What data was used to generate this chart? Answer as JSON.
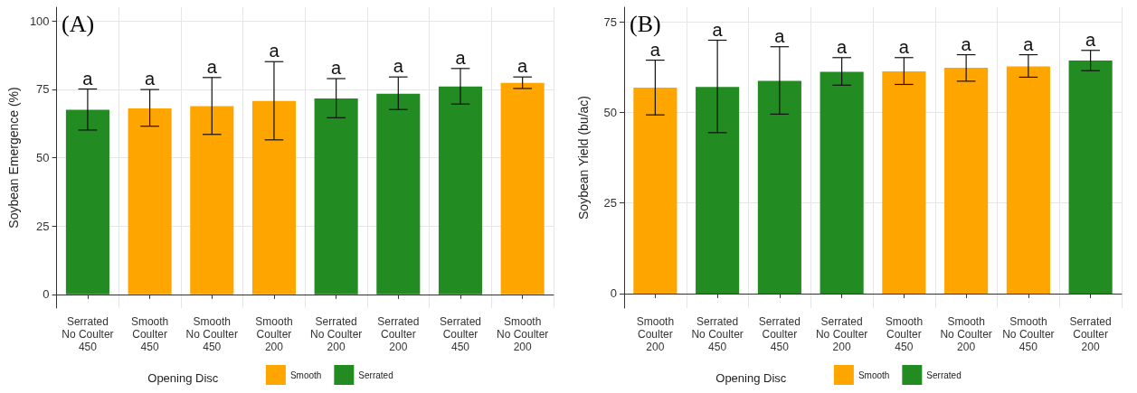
{
  "chart_data": [
    {
      "type": "bar",
      "title": "(A)",
      "ylabel": "Soybean Emergence (%)",
      "legend_title": "Opening Disc",
      "legend": "bottom",
      "grid": true,
      "categories": [
        "Serrated\nNo Coulter\n450",
        "Smooth\nCoulter\n450",
        "Smooth\nNo Coulter\n450",
        "Smooth\nCoulter\n200",
        "Serrated\nNo Coulter\n200",
        "Serrated\nCoulter\n200",
        "Serrated\nCoulter\n450",
        "Smooth\nNo Coulter\n200"
      ],
      "series": [
        {
          "name": "Smooth",
          "color": "#ffa500",
          "values": [
            null,
            68.0,
            68.8,
            70.7,
            null,
            null,
            null,
            77.3
          ],
          "errors": [
            null,
            [
              61.5,
              74.9
            ],
            [
              58.5,
              79.3
            ],
            [
              56.5,
              85.1
            ],
            null,
            null,
            null,
            [
              75.3,
              79.5
            ]
          ]
        },
        {
          "name": "Serrated",
          "color": "#228b22",
          "values": [
            67.5,
            null,
            null,
            null,
            71.6,
            73.4,
            76.0,
            null
          ],
          "errors": [
            [
              60.1,
              75.1
            ],
            null,
            null,
            null,
            [
              64.6,
              78.9
            ],
            [
              67.6,
              79.5
            ],
            [
              69.6,
              82.6
            ],
            null
          ]
        }
      ],
      "ylim": [
        -5,
        105
      ],
      "yticks": [
        0,
        25,
        50,
        75,
        100
      ],
      "annotations": [
        {
          "text": "a",
          "x": "Serrated\nNo Coulter\n450",
          "y": 75.1
        },
        {
          "text": "a",
          "x": "Smooth\nCoulter\n450",
          "y": 74.9
        },
        {
          "text": "a",
          "x": "Smooth\nNo Coulter\n450",
          "y": 79.3
        },
        {
          "text": "a",
          "x": "Smooth\nCoulter\n200",
          "y": 85.1
        },
        {
          "text": "a",
          "x": "Serrated\nNo Coulter\n200",
          "y": 78.9
        },
        {
          "text": "a",
          "x": "Serrated\nCoulter\n200",
          "y": 79.5
        },
        {
          "text": "a",
          "x": "Serrated\nCoulter\n450",
          "y": 82.6
        },
        {
          "text": "a",
          "x": "Smooth\nNo Coulter\n200",
          "y": 79.5
        }
      ]
    },
    {
      "type": "bar",
      "title": "(B)",
      "ylabel": "Soybean Yield (bu/ac)",
      "legend_title": "Opening Disc",
      "legend": "bottom",
      "grid": true,
      "categories": [
        "Smooth\nCoulter\n200",
        "Serrated\nNo Coulter\n450",
        "Serrated\nCoulter\n450",
        "Serrated\nNo Coulter\n200",
        "Smooth\nCoulter\n450",
        "Smooth\nNo Coulter\n200",
        "Smooth\nNo Coulter\n450",
        "Serrated\nCoulter\n200"
      ],
      "series": [
        {
          "name": "Smooth",
          "color": "#ffa500",
          "values": [
            56.8,
            null,
            null,
            null,
            61.3,
            62.3,
            62.7,
            null
          ],
          "errors": [
            [
              49.3,
              64.4
            ],
            null,
            null,
            null,
            [
              57.7,
              65.1
            ],
            [
              58.6,
              65.9
            ],
            [
              59.7,
              65.9
            ],
            null
          ]
        },
        {
          "name": "Serrated",
          "color": "#228b22",
          "values": [
            null,
            57.0,
            58.7,
            61.2,
            null,
            null,
            null,
            64.3
          ],
          "errors": [
            null,
            [
              44.4,
              69.9
            ],
            [
              49.5,
              68.1
            ],
            [
              57.5,
              65.1
            ],
            null,
            null,
            null,
            [
              61.5,
              67.1
            ]
          ]
        }
      ],
      "ylim": [
        -4,
        79
      ],
      "yticks": [
        0,
        25,
        50,
        75
      ],
      "annotations": [
        {
          "text": "a",
          "x": "Smooth\nCoulter\n200",
          "y": 64.4
        },
        {
          "text": "a",
          "x": "Serrated\nNo Coulter\n450",
          "y": 69.9
        },
        {
          "text": "a",
          "x": "Serrated\nCoulter\n450",
          "y": 68.1
        },
        {
          "text": "a",
          "x": "Serrated\nNo Coulter\n200",
          "y": 65.1
        },
        {
          "text": "a",
          "x": "Smooth\nCoulter\n450",
          "y": 65.1
        },
        {
          "text": "a",
          "x": "Smooth\nNo Coulter\n200",
          "y": 65.9
        },
        {
          "text": "a",
          "x": "Smooth\nNo Coulter\n450",
          "y": 65.9
        },
        {
          "text": "a",
          "x": "Serrated\nCoulter\n200",
          "y": 67.1
        }
      ]
    }
  ]
}
